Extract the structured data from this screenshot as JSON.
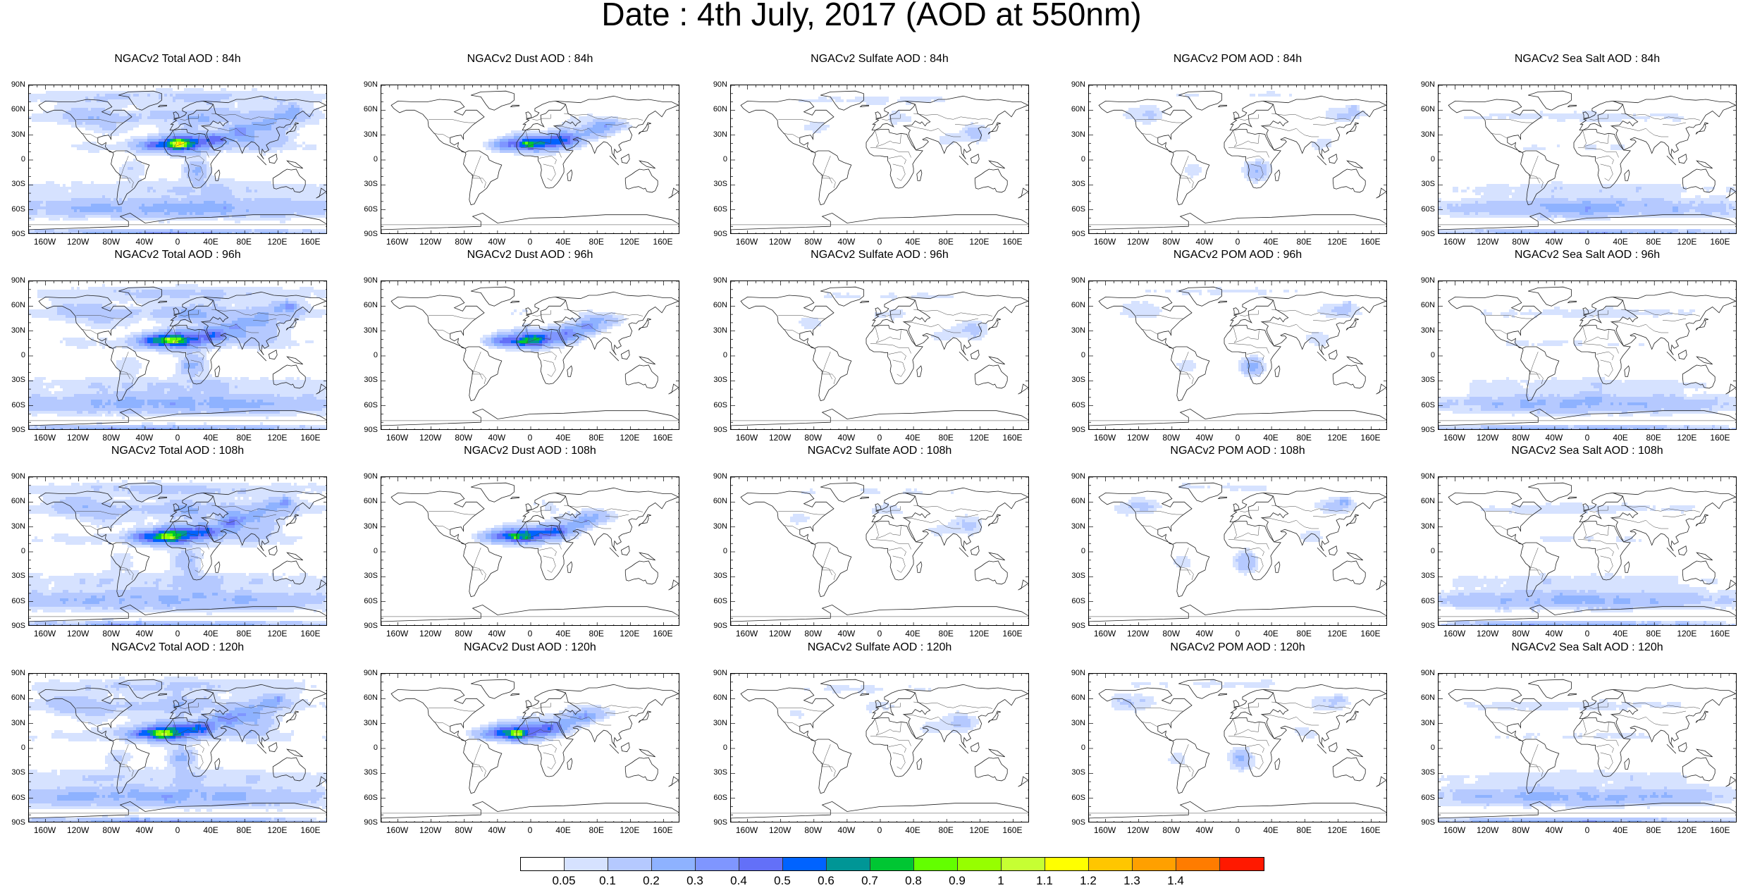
{
  "title": "Date : 4th July, 2017 (AOD at 550nm)",
  "lat_labels": [
    "90N",
    "60N",
    "30N",
    "0",
    "30S",
    "60S",
    "90S"
  ],
  "lon_labels": [
    "160W",
    "120W",
    "80W",
    "40W",
    "0",
    "40E",
    "80E",
    "120E",
    "160E"
  ],
  "colorbar": {
    "colors": [
      "#ffffff",
      "#d6e2ff",
      "#b5c9ff",
      "#8eb2ff",
      "#7f96ff",
      "#6370f8",
      "#0063ff",
      "#009696",
      "#00c633",
      "#63ff00",
      "#96ff00",
      "#c6ff33",
      "#ffff00",
      "#ffc600",
      "#ffa000",
      "#ff7c00",
      "#ff1900"
    ],
    "labels": [
      "0.05",
      "0.1",
      "0.2",
      "0.3",
      "0.4",
      "0.5",
      "0.6",
      "0.7",
      "0.8",
      "0.9",
      "1",
      "1.1",
      "1.2",
      "1.3",
      "1.4"
    ]
  },
  "columns": [
    {
      "species": "total",
      "titles": [
        "NGACv2 Total AOD : 84h",
        "NGACv2 Total AOD : 96h",
        "NGACv2 Total AOD : 108h",
        "NGACv2 Total AOD : 120h"
      ]
    },
    {
      "species": "dust",
      "titles": [
        "NGACv2 Dust AOD : 84h",
        "NGACv2 Dust AOD : 96h",
        "NGACv2 Dust AOD : 108h",
        "NGACv2 Dust AOD : 120h"
      ]
    },
    {
      "species": "sulfate",
      "titles": [
        "NGACv2 Sulfate AOD : 84h",
        "NGACv2 Sulfate AOD : 96h",
        "NGACv2 Sulfate AOD : 108h",
        "NGACv2 Sulfate AOD : 120h"
      ]
    },
    {
      "species": "pom",
      "titles": [
        "NGACv2 POM AOD : 84h",
        "NGACv2 POM AOD : 96h",
        "NGACv2 POM AOD : 108h",
        "NGACv2 POM AOD : 120h"
      ]
    },
    {
      "species": "seasalt",
      "titles": [
        "NGACv2 Sea Salt AOD : 84h",
        "NGACv2 Sea Salt AOD : 96h",
        "NGACv2 Sea Salt AOD : 108h",
        "NGACv2 Sea Salt  AOD : 120h"
      ]
    }
  ]
}
